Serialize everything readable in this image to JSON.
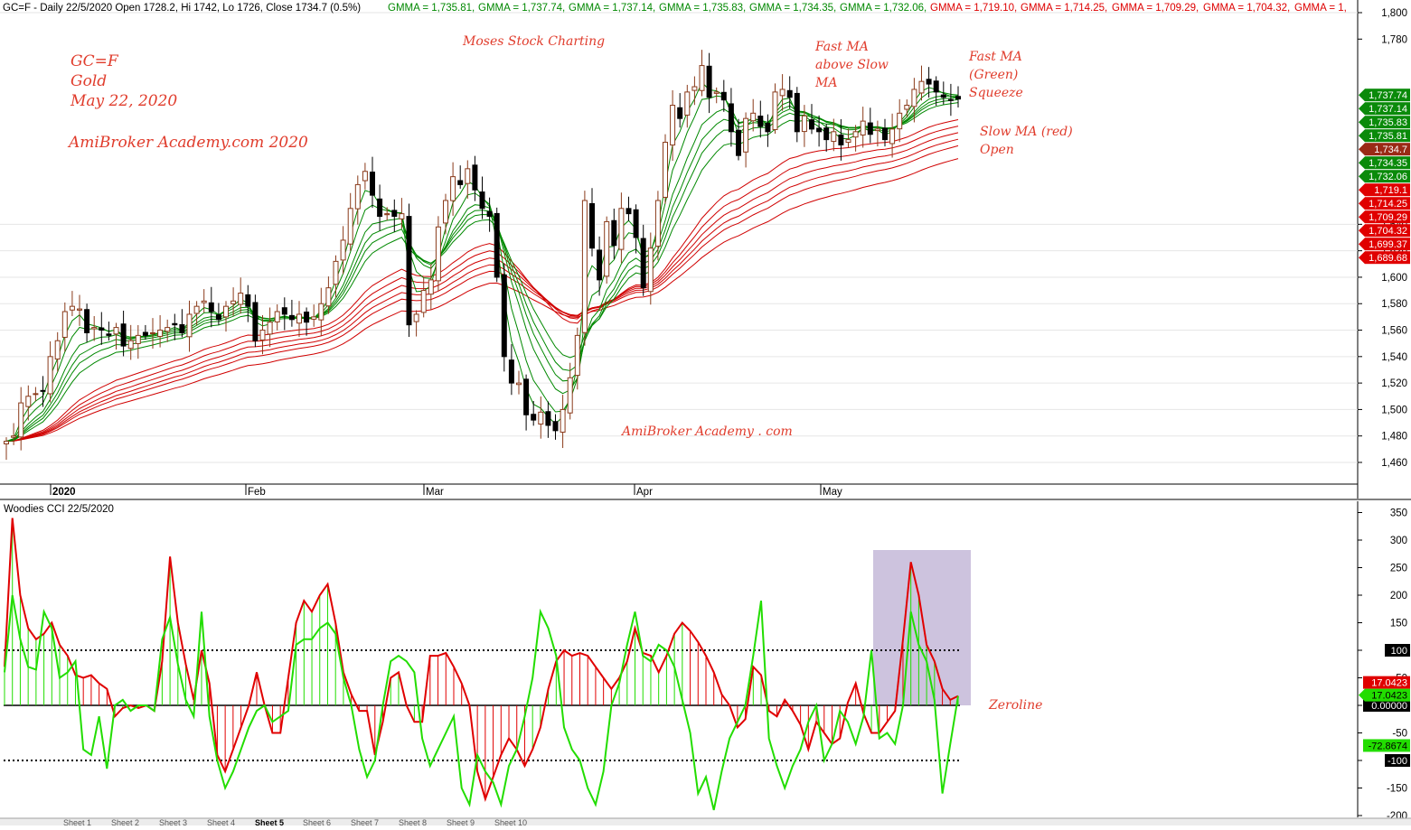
{
  "chart_data": [
    {
      "type": "candlestick",
      "title": "GC=F - Daily 22/5/2020 Open 1728.2, Hi 1742, Lo 1726, Close 1734.7 (0.5%)",
      "header_values": [
        {
          "text": "GMMA = 1,735.81,",
          "color": "#008800"
        },
        {
          "text": "GMMA = 1,737.74,",
          "color": "#008800"
        },
        {
          "text": "GMMA = 1,737.14,",
          "color": "#008800"
        },
        {
          "text": "GMMA = 1,735.83,",
          "color": "#008800"
        },
        {
          "text": "GMMA = 1,734.35,",
          "color": "#008800"
        },
        {
          "text": "GMMA = 1,732.06,",
          "color": "#008800"
        },
        {
          "text": "GMMA = 1,719.10,",
          "color": "#dd0000"
        },
        {
          "text": "GMMA = 1,714.25,",
          "color": "#dd0000"
        },
        {
          "text": "GMMA = 1,709.29,",
          "color": "#dd0000"
        },
        {
          "text": "GMMA = 1,704.32,",
          "color": "#dd0000"
        },
        {
          "text": "GMMA = 1,",
          "color": "#dd0000"
        }
      ],
      "y_ticks": [
        "1,800",
        "1,780",
        "1,640",
        "1,620",
        "1,600",
        "1,580",
        "1,560",
        "1,540",
        "1,520",
        "1,500",
        "1,480",
        "1,460"
      ],
      "x_labels": [
        "2020",
        "Feb",
        "Mar",
        "Apr",
        "May"
      ],
      "ylim": [
        1440,
        1810
      ],
      "price_tags": [
        {
          "text": "1,737.74",
          "value": 1737.74,
          "color": "#0a8a0a"
        },
        {
          "text": "1,737.14",
          "value": 1737.14,
          "color": "#0a8a0a"
        },
        {
          "text": "1,735.83",
          "value": 1735.83,
          "color": "#0a8a0a"
        },
        {
          "text": "1,735.81",
          "value": 1735.81,
          "color": "#0a8a0a"
        },
        {
          "text": "1,734.7",
          "value": 1734.7,
          "color": "#9a2a16"
        },
        {
          "text": "1,734.35",
          "value": 1734.35,
          "color": "#0a8a0a"
        },
        {
          "text": "1,732.06",
          "value": 1732.06,
          "color": "#0a8a0a"
        },
        {
          "text": "1,719.1",
          "value": 1719.1,
          "color": "#e00000"
        },
        {
          "text": "1,714.25",
          "value": 1714.25,
          "color": "#e00000"
        },
        {
          "text": "1,709.29",
          "value": 1709.29,
          "color": "#e00000"
        },
        {
          "text": "1,704.32",
          "value": 1704.32,
          "color": "#e00000"
        },
        {
          "text": "1,699.37",
          "value": 1699.37,
          "color": "#e00000"
        },
        {
          "text": "1,689.68",
          "value": 1689.68,
          "color": "#e00000"
        }
      ],
      "closes": [
        1476,
        1480,
        1505,
        1510,
        1512,
        1514,
        1540,
        1552,
        1574,
        1578,
        1576,
        1558,
        1562,
        1560,
        1556,
        1562,
        1548,
        1552,
        1556,
        1556,
        1558,
        1560,
        1562,
        1564,
        1558,
        1572,
        1578,
        1582,
        1574,
        1568,
        1578,
        1582,
        1588,
        1578,
        1552,
        1560,
        1566,
        1574,
        1572,
        1568,
        1572,
        1566,
        1570,
        1580,
        1592,
        1612,
        1628,
        1652,
        1670,
        1680,
        1662,
        1646,
        1648,
        1646,
        1648,
        1564,
        1572,
        1590,
        1598,
        1638,
        1658,
        1676,
        1670,
        1682,
        1666,
        1652,
        1646,
        1600,
        1540,
        1520,
        1520,
        1496,
        1492,
        1498,
        1488,
        1484,
        1500,
        1524,
        1556,
        1658,
        1622,
        1598,
        1642,
        1624,
        1652,
        1648,
        1630,
        1592,
        1622,
        1658,
        1702,
        1730,
        1720,
        1740,
        1744,
        1760,
        1736,
        1740,
        1734,
        1710,
        1692,
        1720,
        1724,
        1714,
        1710,
        1740,
        1742,
        1736,
        1710,
        1722,
        1712,
        1710,
        1704,
        1710,
        1700,
        1704,
        1710,
        1718,
        1708,
        1712,
        1704,
        1712,
        1724,
        1730,
        1742,
        1748,
        1746,
        1740,
        1736,
        1734,
        1734.7
      ],
      "gmma_short": [
        1735.81,
        1737.74,
        1737.14,
        1735.83,
        1734.35,
        1732.06
      ],
      "gmma_long": [
        1719.1,
        1714.25,
        1709.29,
        1704.32,
        1699.37,
        1689.68
      ],
      "annotations": [
        {
          "text": "Moses Stock Charting",
          "color": "#e03c2c"
        },
        {
          "text": "AmiBroker Academy . com",
          "color": "#e03c2c"
        },
        {
          "text": "Fast MA above Slow MA",
          "color": "#e03c2c"
        },
        {
          "text": "Fast MA (Green) Squeeze",
          "color": "#e03c2c"
        },
        {
          "text": "Slow MA (red) Open",
          "color": "#e03c2c"
        }
      ]
    },
    {
      "type": "line",
      "title": "Woodies CCI  22/5/2020",
      "ylim": [
        -200,
        370
      ],
      "y_ticks": [
        "350",
        "300",
        "250",
        "200",
        "150",
        "100",
        "50",
        "0",
        "-50",
        "-100",
        "-150",
        "-200"
      ],
      "levels": [
        100,
        0,
        -100
      ],
      "level_tags": [
        {
          "text": "100",
          "value": 100
        },
        {
          "text": "0.00000",
          "value": 0
        },
        {
          "text": "-100",
          "value": -100
        }
      ],
      "series": [
        {
          "color": "#e00000",
          "label": "17.0423",
          "values": [
            70,
            340,
            200,
            140,
            120,
            130,
            150,
            110,
            90,
            55,
            50,
            55,
            40,
            30,
            -20,
            -5,
            0,
            -5,
            0,
            -10,
            80,
            270,
            150,
            75,
            10,
            100,
            40,
            -90,
            -120,
            -80,
            -40,
            0,
            60,
            0,
            -50,
            -50,
            50,
            150,
            190,
            170,
            200,
            220,
            150,
            60,
            20,
            -10,
            -10,
            -90,
            -30,
            50,
            60,
            0,
            -30,
            -30,
            90,
            90,
            95,
            70,
            40,
            0,
            -120,
            -170,
            -130,
            -90,
            -60,
            -80,
            -110,
            -80,
            -40,
            30,
            80,
            100,
            90,
            95,
            90,
            70,
            50,
            30,
            50,
            80,
            140,
            95,
            90,
            60,
            90,
            130,
            150,
            135,
            115,
            90,
            60,
            20,
            0,
            -40,
            -25,
            70,
            55,
            -10,
            -20,
            10,
            -10,
            -35,
            -80,
            -30,
            -50,
            -70,
            -60,
            5,
            40,
            -15,
            -50,
            -50,
            -30,
            -10,
            120,
            260,
            200,
            110,
            80,
            30,
            10,
            17
          ]
        },
        {
          "color": "#22dd00",
          "label": "17.0423",
          "values": [
            60,
            200,
            120,
            70,
            65,
            170,
            140,
            50,
            60,
            80,
            -80,
            -90,
            -20,
            -115,
            0,
            10,
            -10,
            0,
            0,
            -10,
            120,
            160,
            75,
            10,
            -20,
            170,
            -20,
            -100,
            -150,
            -120,
            -80,
            -40,
            -10,
            0,
            -30,
            -20,
            -10,
            110,
            120,
            120,
            140,
            150,
            130,
            50,
            0,
            -80,
            -130,
            -100,
            0,
            80,
            90,
            80,
            60,
            -60,
            -110,
            -80,
            -50,
            -20,
            -150,
            -180,
            -90,
            -120,
            -140,
            -180,
            -110,
            -80,
            -20,
            50,
            170,
            140,
            90,
            -40,
            -80,
            -100,
            -150,
            -180,
            -120,
            0,
            40,
            110,
            170,
            90,
            80,
            110,
            100,
            70,
            10,
            -50,
            -160,
            -130,
            -190,
            -120,
            -60,
            -30,
            0,
            90,
            190,
            -60,
            -110,
            -150,
            -110,
            -80,
            -30,
            0,
            -100,
            -70,
            -10,
            -30,
            -70,
            -20,
            100,
            -60,
            -50,
            -70,
            0,
            170,
            110,
            80,
            10,
            -160,
            -70,
            17
          ]
        }
      ],
      "annotations": [
        {
          "text": "Zeroline",
          "color": "#e03c2c"
        }
      ]
    }
  ],
  "notes": {
    "symbol": "GC=F",
    "name": "Gold",
    "date": "May 22, 2020",
    "site": "AmiBroker Academy.com  2020"
  },
  "sheet_tabs": [
    "Sheet 1",
    "Sheet 2",
    "Sheet 3",
    "Sheet 4",
    "Sheet 5",
    "Sheet 6",
    "Sheet 7",
    "Sheet 8",
    "Sheet 9",
    "Sheet 10"
  ],
  "colors": {
    "bull_candle": "#8a3a1a",
    "bear_candle": "#000000",
    "fast_ma": "#008800",
    "slow_ma": "#d00000",
    "cci_bull": "#22dd00",
    "cci_bear": "#e00000",
    "highlight": "#c4b8d8"
  }
}
